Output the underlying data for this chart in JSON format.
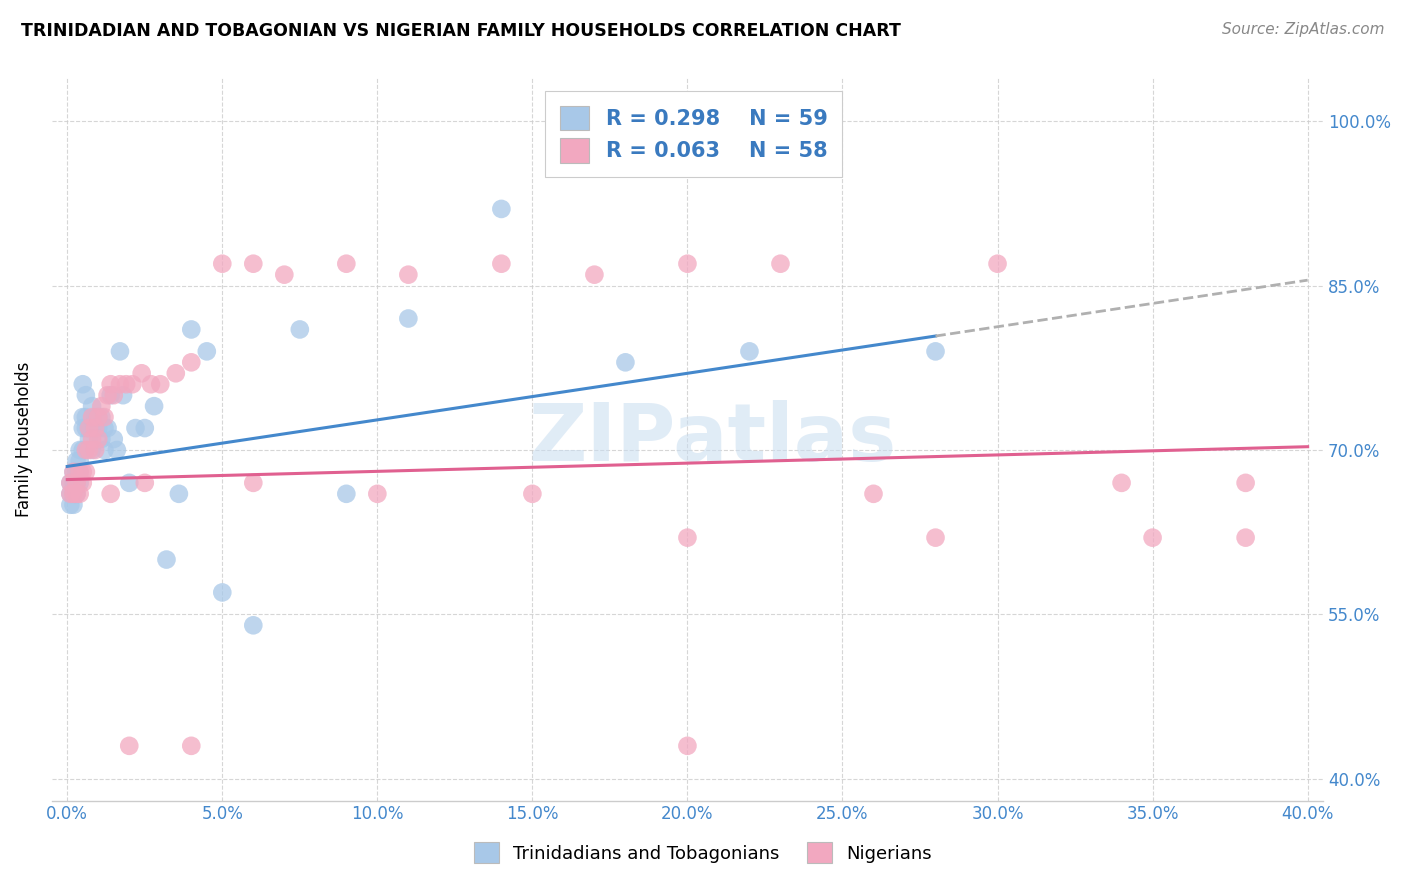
{
  "title": "TRINIDADIAN AND TOBAGONIAN VS NIGERIAN FAMILY HOUSEHOLDS CORRELATION CHART",
  "source": "Source: ZipAtlas.com",
  "ylabel_label": "Family Households",
  "legend_label1": "Trinidadians and Tobagonians",
  "legend_label2": "Nigerians",
  "R1": 0.298,
  "N1": 59,
  "R2": 0.063,
  "N2": 58,
  "color_blue": "#a8c8e8",
  "color_pink": "#f2a8c0",
  "line_blue": "#4488cc",
  "line_pink": "#e06090",
  "line_dash": "#b0b0b0",
  "watermark": "ZIPatlas",
  "blue_x": [
    0.001,
    0.001,
    0.001,
    0.002,
    0.002,
    0.002,
    0.002,
    0.003,
    0.003,
    0.003,
    0.003,
    0.003,
    0.004,
    0.004,
    0.004,
    0.004,
    0.005,
    0.005,
    0.005,
    0.005,
    0.006,
    0.006,
    0.006,
    0.007,
    0.007,
    0.008,
    0.008,
    0.008,
    0.009,
    0.009,
    0.01,
    0.01,
    0.011,
    0.011,
    0.012,
    0.012,
    0.013,
    0.014,
    0.015,
    0.016,
    0.017,
    0.018,
    0.02,
    0.022,
    0.025,
    0.028,
    0.032,
    0.036,
    0.04,
    0.045,
    0.05,
    0.06,
    0.075,
    0.09,
    0.11,
    0.14,
    0.18,
    0.22,
    0.28
  ],
  "blue_y": [
    0.67,
    0.66,
    0.65,
    0.67,
    0.66,
    0.68,
    0.65,
    0.68,
    0.67,
    0.66,
    0.69,
    0.67,
    0.7,
    0.68,
    0.69,
    0.67,
    0.76,
    0.73,
    0.72,
    0.7,
    0.75,
    0.73,
    0.72,
    0.72,
    0.71,
    0.74,
    0.72,
    0.7,
    0.72,
    0.73,
    0.73,
    0.72,
    0.73,
    0.71,
    0.72,
    0.7,
    0.72,
    0.75,
    0.71,
    0.7,
    0.79,
    0.75,
    0.67,
    0.72,
    0.72,
    0.74,
    0.6,
    0.66,
    0.81,
    0.79,
    0.57,
    0.54,
    0.81,
    0.66,
    0.82,
    0.92,
    0.78,
    0.79,
    0.79
  ],
  "pink_x": [
    0.001,
    0.001,
    0.002,
    0.002,
    0.003,
    0.003,
    0.004,
    0.004,
    0.005,
    0.005,
    0.006,
    0.006,
    0.007,
    0.007,
    0.008,
    0.008,
    0.009,
    0.009,
    0.01,
    0.01,
    0.011,
    0.012,
    0.013,
    0.014,
    0.015,
    0.017,
    0.019,
    0.021,
    0.024,
    0.027,
    0.03,
    0.035,
    0.04,
    0.05,
    0.06,
    0.07,
    0.09,
    0.11,
    0.14,
    0.17,
    0.2,
    0.23,
    0.26,
    0.3,
    0.34,
    0.38,
    0.014,
    0.025,
    0.06,
    0.1,
    0.15,
    0.2,
    0.28,
    0.35,
    0.38,
    0.02,
    0.04,
    0.2
  ],
  "pink_y": [
    0.67,
    0.66,
    0.68,
    0.66,
    0.67,
    0.66,
    0.68,
    0.66,
    0.68,
    0.67,
    0.7,
    0.68,
    0.72,
    0.7,
    0.73,
    0.71,
    0.72,
    0.7,
    0.73,
    0.71,
    0.74,
    0.73,
    0.75,
    0.76,
    0.75,
    0.76,
    0.76,
    0.76,
    0.77,
    0.76,
    0.76,
    0.77,
    0.78,
    0.87,
    0.87,
    0.86,
    0.87,
    0.86,
    0.87,
    0.86,
    0.87,
    0.87,
    0.66,
    0.87,
    0.67,
    0.67,
    0.66,
    0.67,
    0.67,
    0.66,
    0.66,
    0.62,
    0.62,
    0.62,
    0.62,
    0.43,
    0.43,
    0.43
  ]
}
